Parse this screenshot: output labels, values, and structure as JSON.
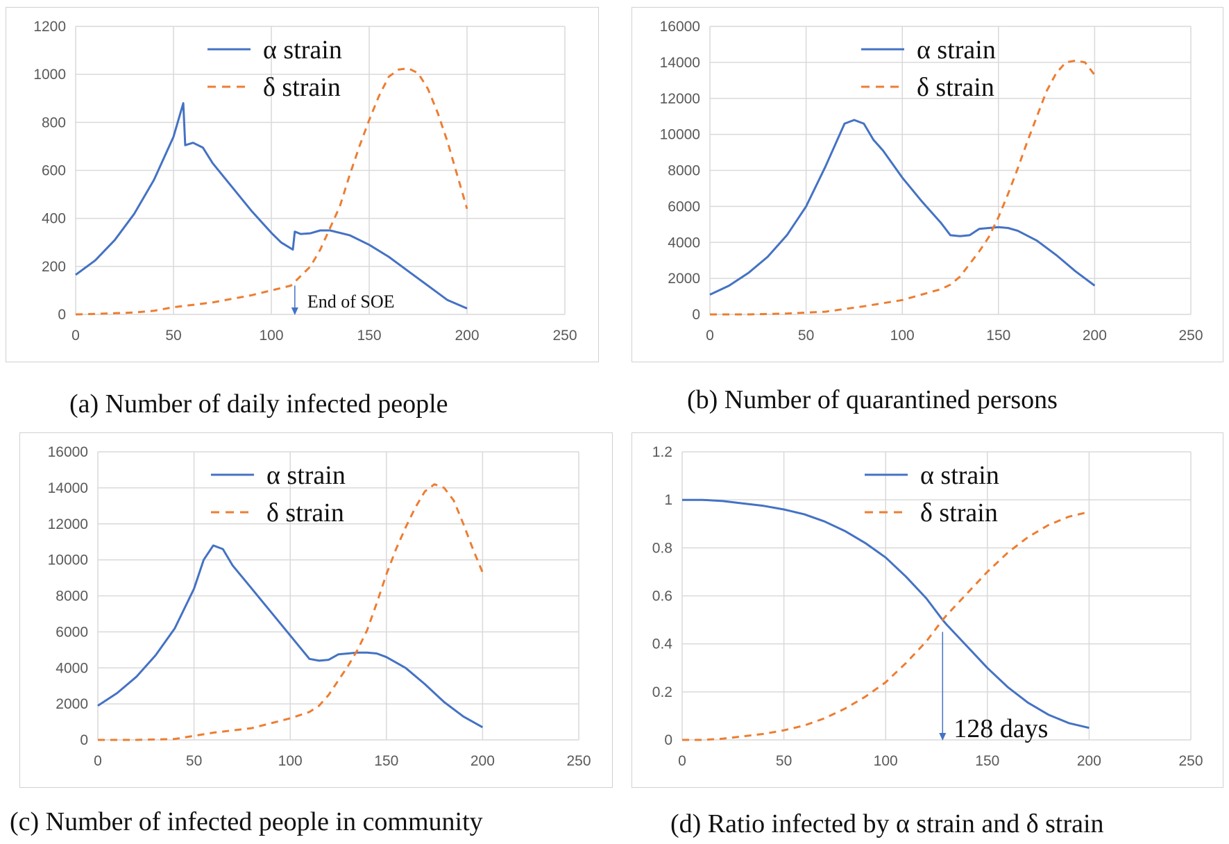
{
  "colors": {
    "alpha": "#4472C4",
    "delta": "#ED7D31",
    "grid": "#d9d9d9",
    "tick": "#595959"
  },
  "figure": {
    "panels": [
      {
        "id": "a",
        "caption": "(a) Number of daily infected people"
      },
      {
        "id": "b",
        "caption": "(b) Number of quarantined persons"
      },
      {
        "id": "c",
        "caption": "(c) Number of infected people in community"
      },
      {
        "id": "d",
        "caption": "(d) Ratio infected by α strain and δ strain"
      }
    ]
  },
  "chart_data": [
    {
      "id": "a",
      "type": "line",
      "title": "(a) Number of daily infected people",
      "xlim": [
        0,
        250
      ],
      "ylim": [
        0,
        1200
      ],
      "xticks": [
        "0",
        "50",
        "100",
        "150",
        "200",
        "250"
      ],
      "yticks": [
        "0",
        "200",
        "400",
        "600",
        "800",
        "1000",
        "1200"
      ],
      "grid": true,
      "legend": [
        "α strain",
        "δ strain"
      ],
      "legend_position": "top-center",
      "annotation": {
        "text": "End of SOE",
        "x": 112,
        "arrow_from_y": 120,
        "arrow_to_y": 0
      },
      "series": [
        {
          "name": "α strain",
          "style": "solid",
          "x": [
            0,
            10,
            20,
            30,
            40,
            50,
            55,
            56,
            60,
            65,
            70,
            80,
            90,
            100,
            105,
            111,
            112,
            115,
            120,
            125,
            130,
            140,
            150,
            160,
            170,
            180,
            190,
            200
          ],
          "y": [
            165,
            225,
            310,
            420,
            560,
            740,
            880,
            705,
            715,
            695,
            630,
            530,
            430,
            340,
            300,
            270,
            345,
            335,
            338,
            350,
            350,
            330,
            290,
            240,
            180,
            120,
            60,
            25
          ]
        },
        {
          "name": "δ strain",
          "style": "dashed",
          "x": [
            0,
            10,
            20,
            30,
            40,
            50,
            60,
            70,
            80,
            90,
            100,
            110,
            115,
            120,
            125,
            130,
            135,
            140,
            145,
            150,
            155,
            160,
            165,
            170,
            175,
            180,
            185,
            190,
            195,
            200
          ],
          "y": [
            0,
            2,
            5,
            8,
            15,
            30,
            40,
            50,
            65,
            80,
            100,
            120,
            160,
            200,
            270,
            360,
            450,
            580,
            700,
            810,
            910,
            990,
            1020,
            1025,
            1005,
            940,
            840,
            720,
            580,
            440
          ]
        }
      ]
    },
    {
      "id": "b",
      "type": "line",
      "title": "(b) Number of quarantined persons",
      "xlim": [
        0,
        250
      ],
      "ylim": [
        0,
        16000
      ],
      "xticks": [
        "0",
        "50",
        "100",
        "150",
        "200",
        "250"
      ],
      "yticks": [
        "0",
        "2000",
        "4000",
        "6000",
        "8000",
        "10000",
        "12000",
        "14000",
        "16000"
      ],
      "grid": true,
      "legend": [
        "α strain",
        "δ strain"
      ],
      "legend_position": "top-center",
      "series": [
        {
          "name": "α strain",
          "style": "solid",
          "x": [
            0,
            10,
            20,
            30,
            40,
            50,
            60,
            70,
            75,
            80,
            85,
            90,
            100,
            110,
            120,
            125,
            130,
            135,
            140,
            145,
            150,
            155,
            160,
            170,
            180,
            190,
            200
          ],
          "y": [
            1100,
            1600,
            2300,
            3200,
            4400,
            6000,
            8200,
            10600,
            10800,
            10600,
            9700,
            9100,
            7600,
            6300,
            5100,
            4400,
            4350,
            4400,
            4750,
            4800,
            4850,
            4800,
            4650,
            4100,
            3300,
            2400,
            1600
          ]
        },
        {
          "name": "δ strain",
          "style": "dashed",
          "x": [
            0,
            20,
            40,
            60,
            80,
            100,
            110,
            120,
            125,
            130,
            135,
            140,
            145,
            150,
            155,
            160,
            165,
            170,
            175,
            180,
            185,
            190,
            195,
            200
          ],
          "y": [
            0,
            0,
            50,
            150,
            450,
            800,
            1100,
            1400,
            1650,
            2100,
            2800,
            3500,
            4300,
            5400,
            6700,
            8100,
            9600,
            11000,
            12400,
            13400,
            14000,
            14100,
            14000,
            13300
          ]
        }
      ]
    },
    {
      "id": "c",
      "type": "line",
      "title": "(c) Number of infected people in community",
      "xlim": [
        0,
        250
      ],
      "ylim": [
        0,
        16000
      ],
      "xticks": [
        "0",
        "50",
        "100",
        "150",
        "200",
        "250"
      ],
      "yticks": [
        "0",
        "2000",
        "4000",
        "6000",
        "8000",
        "10000",
        "12000",
        "14000",
        "16000"
      ],
      "grid": true,
      "legend": [
        "α strain",
        "δ strain"
      ],
      "legend_position": "top-center",
      "series": [
        {
          "name": "α strain",
          "style": "solid",
          "x": [
            0,
            10,
            20,
            30,
            40,
            50,
            55,
            60,
            65,
            70,
            80,
            90,
            100,
            110,
            115,
            120,
            125,
            130,
            135,
            140,
            145,
            150,
            160,
            170,
            180,
            190,
            200
          ],
          "y": [
            1900,
            2600,
            3500,
            4700,
            6200,
            8400,
            10000,
            10800,
            10600,
            9700,
            8400,
            7100,
            5800,
            4500,
            4400,
            4450,
            4750,
            4800,
            4850,
            4850,
            4800,
            4600,
            4000,
            3100,
            2100,
            1300,
            700
          ]
        },
        {
          "name": "δ strain",
          "style": "dashed",
          "x": [
            0,
            20,
            40,
            60,
            80,
            100,
            110,
            115,
            120,
            125,
            130,
            135,
            140,
            145,
            150,
            155,
            160,
            165,
            170,
            175,
            180,
            185,
            190,
            195,
            200
          ],
          "y": [
            0,
            0,
            50,
            400,
            650,
            1200,
            1550,
            1900,
            2500,
            3300,
            4100,
            5000,
            6100,
            7600,
            9200,
            10600,
            11800,
            12900,
            13800,
            14200,
            14000,
            13300,
            12000,
            10600,
            9300
          ]
        }
      ]
    },
    {
      "id": "d",
      "type": "line",
      "title": "(d) Ratio infected by α strain and δ strain",
      "xlim": [
        0,
        250
      ],
      "ylim": [
        0,
        1.2
      ],
      "xticks": [
        "0",
        "50",
        "100",
        "150",
        "200",
        "250"
      ],
      "yticks": [
        "0",
        "0.2",
        "0.4",
        "0.6",
        "0.8",
        "1",
        "1.2"
      ],
      "grid": true,
      "legend": [
        "α strain",
        "δ strain"
      ],
      "legend_position": "top-center",
      "annotation": {
        "text": "128 days",
        "x": 128,
        "arrow_from_y": 0.45,
        "arrow_to_y": 0
      },
      "series": [
        {
          "name": "α strain",
          "style": "solid",
          "x": [
            0,
            10,
            20,
            30,
            40,
            50,
            60,
            70,
            80,
            90,
            100,
            110,
            120,
            128,
            130,
            140,
            150,
            160,
            170,
            180,
            190,
            200
          ],
          "y": [
            1.0,
            1.0,
            0.995,
            0.985,
            0.975,
            0.96,
            0.94,
            0.91,
            0.87,
            0.82,
            0.76,
            0.68,
            0.59,
            0.5,
            0.48,
            0.39,
            0.3,
            0.22,
            0.155,
            0.105,
            0.07,
            0.05
          ]
        },
        {
          "name": "δ strain",
          "style": "dashed",
          "x": [
            0,
            10,
            20,
            30,
            40,
            50,
            60,
            70,
            80,
            90,
            100,
            110,
            120,
            128,
            130,
            140,
            150,
            160,
            170,
            180,
            190,
            200
          ],
          "y": [
            0.0,
            0.0,
            0.005,
            0.015,
            0.025,
            0.04,
            0.06,
            0.09,
            0.13,
            0.18,
            0.24,
            0.32,
            0.41,
            0.5,
            0.52,
            0.61,
            0.7,
            0.78,
            0.845,
            0.895,
            0.93,
            0.95
          ]
        }
      ]
    }
  ]
}
